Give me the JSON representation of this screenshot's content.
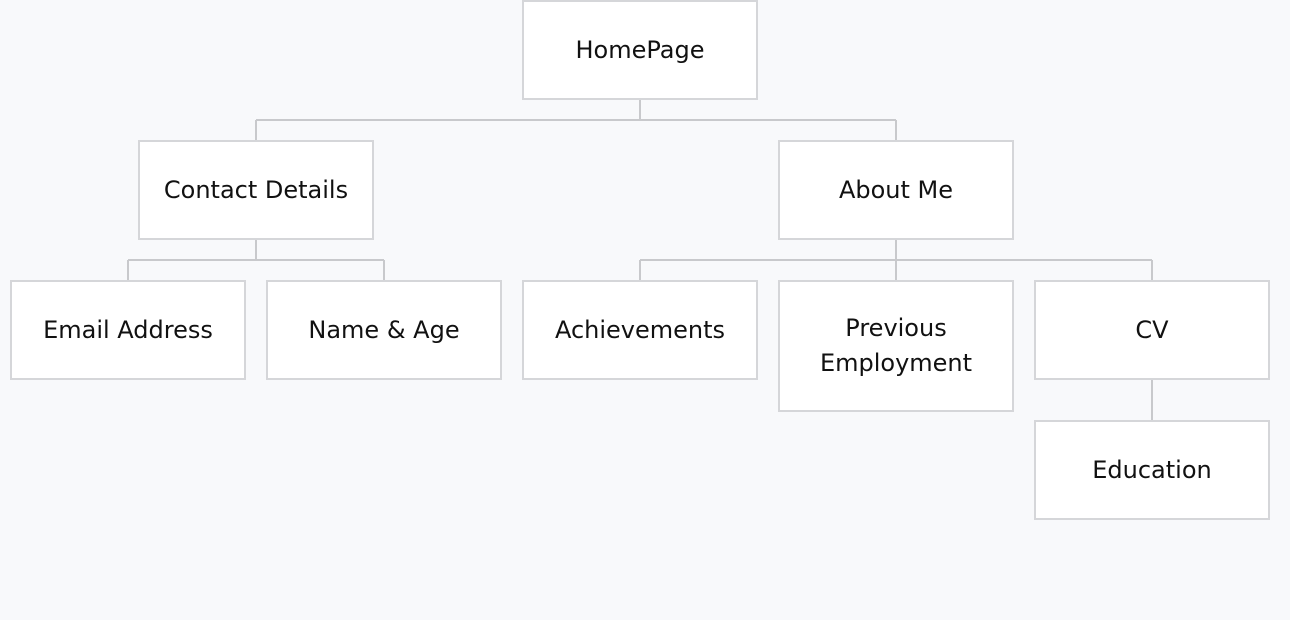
{
  "nodes": {
    "homepage": "HomePage",
    "contact_details": "Contact Details",
    "about_me": "About Me",
    "email_address": "Email Address",
    "name_age": "Name & Age",
    "achievements": "Achievements",
    "previous_employment": "Previous Employment",
    "cv": "CV",
    "education": "Education"
  },
  "colors": {
    "background": "#f8f9fb",
    "node_fill": "#ffffff",
    "node_border": "#d5d6d9",
    "connector": "#c8c9cc",
    "text": "#111111"
  }
}
